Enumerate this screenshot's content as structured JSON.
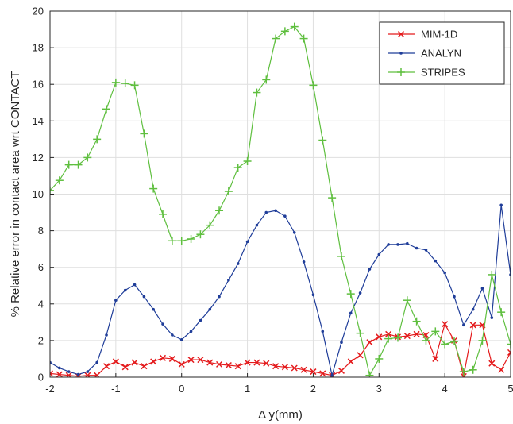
{
  "chart_data": {
    "type": "line",
    "title": "",
    "xlabel": "Δ y(mm)",
    "ylabel": "% Relative error in contact area wrt CONTACT",
    "xlim": [
      -2,
      5
    ],
    "ylim": [
      0,
      20
    ],
    "xticks": [
      -2,
      -1,
      0,
      1,
      2,
      3,
      4,
      5
    ],
    "yticks": [
      0,
      2,
      4,
      6,
      8,
      10,
      12,
      14,
      16,
      18,
      20
    ],
    "grid": true,
    "legend_position": "top-right",
    "series": [
      {
        "name": "MIM-1D",
        "color": "#e41a1c",
        "marker": "x",
        "points": [
          [
            -2.0,
            0.2
          ],
          [
            -1.857,
            0.15
          ],
          [
            -1.714,
            0.1
          ],
          [
            -1.571,
            0.05
          ],
          [
            -1.429,
            0.1
          ],
          [
            -1.286,
            0.1
          ],
          [
            -1.143,
            0.6
          ],
          [
            -1.0,
            0.85
          ],
          [
            -0.857,
            0.55
          ],
          [
            -0.714,
            0.8
          ],
          [
            -0.571,
            0.6
          ],
          [
            -0.429,
            0.85
          ],
          [
            -0.286,
            1.05
          ],
          [
            -0.143,
            1.0
          ],
          [
            0.0,
            0.7
          ],
          [
            0.143,
            0.95
          ],
          [
            0.286,
            0.95
          ],
          [
            0.429,
            0.8
          ],
          [
            0.571,
            0.7
          ],
          [
            0.714,
            0.65
          ],
          [
            0.857,
            0.6
          ],
          [
            1.0,
            0.8
          ],
          [
            1.143,
            0.8
          ],
          [
            1.286,
            0.75
          ],
          [
            1.429,
            0.6
          ],
          [
            1.571,
            0.55
          ],
          [
            1.714,
            0.5
          ],
          [
            1.857,
            0.4
          ],
          [
            2.0,
            0.3
          ],
          [
            2.143,
            0.2
          ],
          [
            2.286,
            0.1
          ],
          [
            2.429,
            0.35
          ],
          [
            2.571,
            0.85
          ],
          [
            2.714,
            1.2
          ],
          [
            2.857,
            1.9
          ],
          [
            3.0,
            2.2
          ],
          [
            3.143,
            2.35
          ],
          [
            3.286,
            2.2
          ],
          [
            3.429,
            2.25
          ],
          [
            3.571,
            2.35
          ],
          [
            3.714,
            2.3
          ],
          [
            3.857,
            1.0
          ],
          [
            4.0,
            2.9
          ],
          [
            4.143,
            2.0
          ],
          [
            4.286,
            0.05
          ],
          [
            4.429,
            2.85
          ],
          [
            4.571,
            2.85
          ],
          [
            4.714,
            0.75
          ],
          [
            4.857,
            0.4
          ],
          [
            5.0,
            1.35
          ]
        ]
      },
      {
        "name": "ANALYN",
        "color": "#1f3d99",
        "marker": ".",
        "points": [
          [
            -2.0,
            0.8
          ],
          [
            -1.857,
            0.5
          ],
          [
            -1.714,
            0.3
          ],
          [
            -1.571,
            0.15
          ],
          [
            -1.429,
            0.3
          ],
          [
            -1.286,
            0.8
          ],
          [
            -1.143,
            2.3
          ],
          [
            -1.0,
            4.2
          ],
          [
            -0.857,
            4.75
          ],
          [
            -0.714,
            5.05
          ],
          [
            -0.571,
            4.4
          ],
          [
            -0.429,
            3.7
          ],
          [
            -0.286,
            2.9
          ],
          [
            -0.143,
            2.3
          ],
          [
            0.0,
            2.05
          ],
          [
            0.143,
            2.5
          ],
          [
            0.286,
            3.1
          ],
          [
            0.429,
            3.7
          ],
          [
            0.571,
            4.4
          ],
          [
            0.714,
            5.3
          ],
          [
            0.857,
            6.2
          ],
          [
            1.0,
            7.4
          ],
          [
            1.143,
            8.3
          ],
          [
            1.286,
            9.0
          ],
          [
            1.429,
            9.1
          ],
          [
            1.571,
            8.8
          ],
          [
            1.714,
            7.9
          ],
          [
            1.857,
            6.3
          ],
          [
            2.0,
            4.5
          ],
          [
            2.143,
            2.5
          ],
          [
            2.286,
            0.1
          ],
          [
            2.429,
            1.9
          ],
          [
            2.571,
            3.5
          ],
          [
            2.714,
            4.6
          ],
          [
            2.857,
            5.9
          ],
          [
            3.0,
            6.7
          ],
          [
            3.143,
            7.25
          ],
          [
            3.286,
            7.25
          ],
          [
            3.429,
            7.3
          ],
          [
            3.571,
            7.05
          ],
          [
            3.714,
            6.95
          ],
          [
            3.857,
            6.35
          ],
          [
            4.0,
            5.7
          ],
          [
            4.143,
            4.4
          ],
          [
            4.286,
            2.85
          ],
          [
            4.429,
            3.7
          ],
          [
            4.571,
            4.85
          ],
          [
            4.714,
            3.25
          ],
          [
            4.857,
            9.4
          ],
          [
            5.0,
            5.6
          ]
        ]
      },
      {
        "name": "STRIPES",
        "color": "#5fbf3f",
        "marker": "+",
        "points": [
          [
            -2.0,
            10.2
          ],
          [
            -1.857,
            10.75
          ],
          [
            -1.714,
            11.6
          ],
          [
            -1.571,
            11.6
          ],
          [
            -1.429,
            12.0
          ],
          [
            -1.286,
            13.0
          ],
          [
            -1.143,
            14.65
          ],
          [
            -1.0,
            16.1
          ],
          [
            -0.857,
            16.05
          ],
          [
            -0.714,
            15.95
          ],
          [
            -0.571,
            13.3
          ],
          [
            -0.429,
            10.3
          ],
          [
            -0.286,
            8.9
          ],
          [
            -0.143,
            7.45
          ],
          [
            0.0,
            7.45
          ],
          [
            0.143,
            7.55
          ],
          [
            0.286,
            7.8
          ],
          [
            0.429,
            8.3
          ],
          [
            0.571,
            9.1
          ],
          [
            0.714,
            10.15
          ],
          [
            0.857,
            11.45
          ],
          [
            1.0,
            11.8
          ],
          [
            1.143,
            15.55
          ],
          [
            1.286,
            16.25
          ],
          [
            1.429,
            18.5
          ],
          [
            1.571,
            18.9
          ],
          [
            1.714,
            19.15
          ],
          [
            1.857,
            18.5
          ],
          [
            2.0,
            15.95
          ],
          [
            2.143,
            12.95
          ],
          [
            2.286,
            9.8
          ],
          [
            2.429,
            6.6
          ],
          [
            2.571,
            4.55
          ],
          [
            2.714,
            2.4
          ],
          [
            2.857,
            0.1
          ],
          [
            3.0,
            1.0
          ],
          [
            3.143,
            2.1
          ],
          [
            3.286,
            2.15
          ],
          [
            3.429,
            4.2
          ],
          [
            3.571,
            3.05
          ],
          [
            3.714,
            2.0
          ],
          [
            3.857,
            2.5
          ],
          [
            4.0,
            1.8
          ],
          [
            4.143,
            1.95
          ],
          [
            4.286,
            0.3
          ],
          [
            4.429,
            0.4
          ],
          [
            4.571,
            2.0
          ],
          [
            4.714,
            5.6
          ],
          [
            4.857,
            3.55
          ],
          [
            5.0,
            1.8
          ]
        ]
      }
    ]
  }
}
